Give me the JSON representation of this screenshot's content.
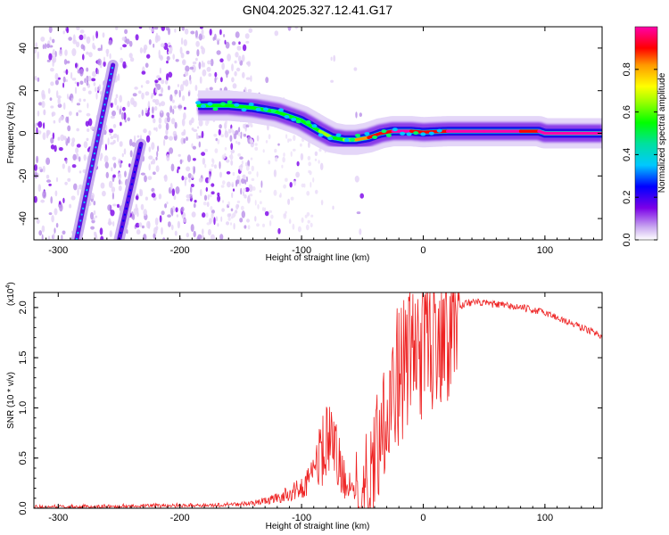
{
  "title": "GN04.2025.327.12.41.G17",
  "chart_data": [
    {
      "type": "heatmap",
      "name": "spectrogram",
      "xlabel": "Height of straight line (km)",
      "ylabel": "Frequency (Hz)",
      "xlim": [
        -320,
        147
      ],
      "ylim": [
        -50,
        50
      ],
      "xticks": [
        -300,
        -200,
        -100,
        0,
        100
      ],
      "yticks": [
        -40,
        -20,
        0,
        20,
        40
      ],
      "colorbar": {
        "label": "Normalized spectral amplitude",
        "range": [
          0.0,
          1.0
        ],
        "ticks": [
          0.0,
          0.2,
          0.4,
          0.6,
          0.8
        ]
      },
      "ridges": [
        {
          "name": "steep-ridge-1",
          "x": [
            -285,
            -255
          ],
          "y": [
            -50,
            32
          ],
          "amplitude": 0.35
        },
        {
          "name": "steep-ridge-2",
          "x": [
            -250,
            -232
          ],
          "y": [
            -50,
            -5
          ],
          "amplitude": 0.2
        },
        {
          "name": "main-signal",
          "x": [
            -185,
            -160,
            -140,
            -120,
            -100,
            -85,
            -75,
            -65,
            -55,
            -45,
            -35,
            -25,
            -10,
            0,
            20,
            50,
            80,
            95,
            100,
            147
          ],
          "y": [
            13,
            13,
            12,
            10,
            6,
            1,
            -2,
            -3,
            -3,
            -2,
            0,
            1,
            1,
            0.5,
            1,
            1,
            1,
            1,
            0,
            0
          ],
          "amplitude": [
            0.5,
            0.55,
            0.5,
            0.55,
            0.5,
            0.55,
            0.6,
            0.55,
            0.65,
            0.8,
            0.85,
            0.9,
            0.95,
            0.85,
            0.9,
            0.95,
            0.95,
            0.9,
            0.95,
            0.95
          ]
        }
      ]
    },
    {
      "type": "line",
      "name": "snr",
      "xlabel": "Height of straight line (km)",
      "ylabel": "SNR (10 * v/v)",
      "y_multiplier": "(x10",
      "y_multiplier_exp": "4",
      "y_multiplier_close": ")",
      "xlim": [
        -320,
        147
      ],
      "ylim": [
        0,
        2.15
      ],
      "xticks": [
        -300,
        -200,
        -100,
        0,
        100
      ],
      "yticks": [
        0.0,
        0.5,
        1.0,
        1.5,
        2.0
      ],
      "series": [
        {
          "name": "SNR",
          "color": "#ee2222",
          "x": [
            -320,
            -250,
            -200,
            -170,
            -140,
            -120,
            -100,
            -90,
            -80,
            -72,
            -65,
            -55,
            -45,
            -35,
            -28,
            -20,
            -12,
            -5,
            5,
            15,
            25,
            35,
            45,
            60,
            80,
            100,
            120,
            147
          ],
          "y": [
            0.01,
            0.02,
            0.03,
            0.03,
            0.05,
            0.1,
            0.2,
            0.35,
            0.65,
            0.55,
            0.3,
            0.1,
            0.3,
            0.8,
            1.1,
            1.35,
            1.5,
            1.6,
            1.75,
            1.85,
            1.95,
            2.05,
            2.05,
            2.03,
            2.0,
            1.95,
            1.85,
            1.72
          ]
        }
      ]
    }
  ]
}
